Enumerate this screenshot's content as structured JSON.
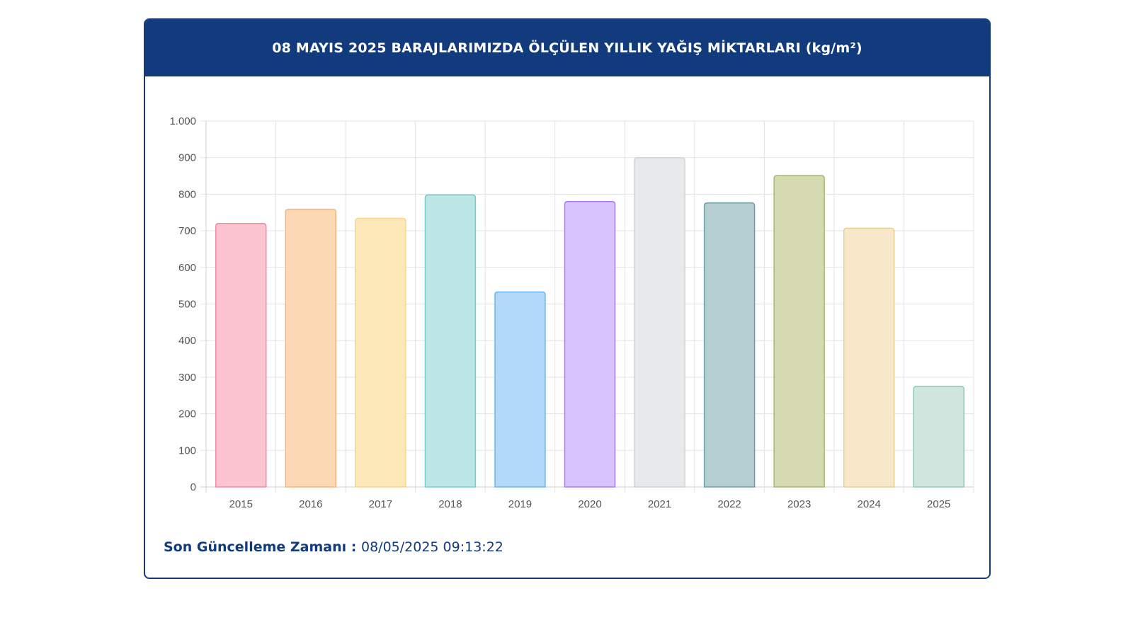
{
  "header": {
    "title": "08 MAYIS 2025 BARAJLARIMIZDA ÖLÇÜLEN YILLIK YAĞIŞ MİKTARLARI (kg/m²)"
  },
  "footer": {
    "label": "Son Güncelleme Zamanı",
    "separator": " : ",
    "timestamp": "08/05/2025 09:13:22"
  },
  "colors": {
    "header_bg": "#123b7e",
    "text_primary": "#123b7e",
    "grid": "#e3e3e3"
  },
  "chart_data": {
    "type": "bar",
    "title": "08 MAYIS 2025 BARAJLARIMIZDA ÖLÇÜLEN YILLIK YAĞIŞ MİKTARLARI (kg/m²)",
    "xlabel": "",
    "ylabel": "",
    "categories": [
      "2015",
      "2016",
      "2017",
      "2018",
      "2019",
      "2020",
      "2021",
      "2022",
      "2023",
      "2024",
      "2025"
    ],
    "values": [
      720,
      759,
      734,
      798,
      533,
      780,
      900,
      776,
      851,
      707,
      275
    ],
    "ylim": [
      0,
      1000
    ],
    "yticks": [
      0,
      100,
      200,
      300,
      400,
      500,
      600,
      700,
      800,
      900,
      1000
    ],
    "ytick_labels": [
      "0",
      "100",
      "200",
      "300",
      "400",
      "500",
      "600",
      "700",
      "800",
      "900",
      "1.000"
    ],
    "grid": true,
    "legend": "none",
    "bar_fill_colors": [
      "#fcc3d0",
      "#fdd8b4",
      "#fde8ba",
      "#bde7e7",
      "#b2d9f8",
      "#d8c3fc",
      "#e8e9eb",
      "#b5ced2",
      "#d5dab1",
      "#f6e8c8",
      "#cfe6df"
    ],
    "bar_border_colors": [
      "#f08aa4",
      "#f4b57a",
      "#f6d58c",
      "#6fcfcf",
      "#6fb5ec",
      "#a97cf0",
      "#d0d2d6",
      "#6f9ea4",
      "#a9b66e",
      "#e6cf93",
      "#8fc8b5"
    ]
  }
}
